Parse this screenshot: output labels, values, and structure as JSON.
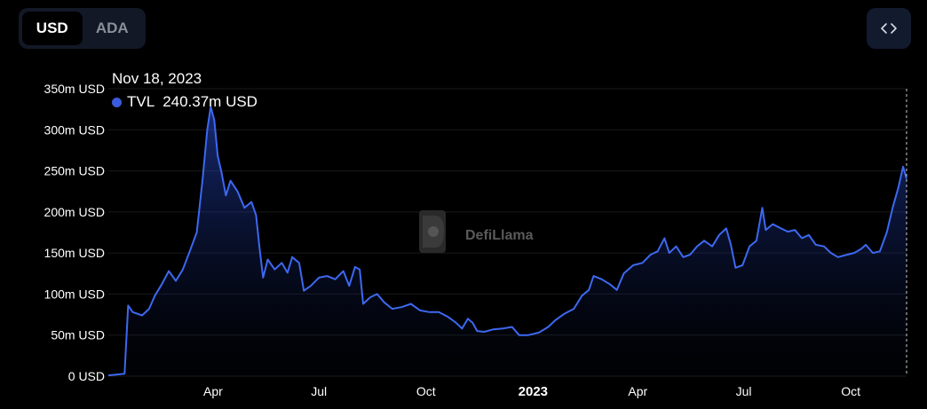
{
  "currency_toggle": {
    "options": [
      "USD",
      "ADA"
    ],
    "selected": "USD"
  },
  "embed_button": {
    "icon": "code-brackets-icon"
  },
  "tooltip": {
    "date": "Nov 18, 2023",
    "series_name": "TVL",
    "value": "240.37m USD",
    "dot_color": "#3b5bdb"
  },
  "watermark": {
    "text": "DefiLlama"
  },
  "colors": {
    "line": "#3d68f0",
    "background": "#000000",
    "grid": "#1a1a1a"
  },
  "chart_data": {
    "type": "area",
    "series": [
      {
        "name": "TVL",
        "unit": "m USD",
        "points": [
          [
            "2022-01-01",
            1
          ],
          [
            "2022-01-15",
            3
          ],
          [
            "2022-01-18",
            86
          ],
          [
            "2022-01-22",
            78
          ],
          [
            "2022-01-30",
            74
          ],
          [
            "2022-02-05",
            82
          ],
          [
            "2022-02-10",
            98
          ],
          [
            "2022-02-16",
            112
          ],
          [
            "2022-02-22",
            128
          ],
          [
            "2022-02-28",
            116
          ],
          [
            "2022-03-06",
            130
          ],
          [
            "2022-03-12",
            152
          ],
          [
            "2022-03-18",
            175
          ],
          [
            "2022-03-23",
            240
          ],
          [
            "2022-03-27",
            300
          ],
          [
            "2022-03-30",
            328
          ],
          [
            "2022-04-02",
            312
          ],
          [
            "2022-04-05",
            268
          ],
          [
            "2022-04-08",
            250
          ],
          [
            "2022-04-12",
            220
          ],
          [
            "2022-04-16",
            238
          ],
          [
            "2022-04-22",
            225
          ],
          [
            "2022-04-28",
            205
          ],
          [
            "2022-05-04",
            212
          ],
          [
            "2022-05-08",
            196
          ],
          [
            "2022-05-11",
            155
          ],
          [
            "2022-05-14",
            120
          ],
          [
            "2022-05-18",
            142
          ],
          [
            "2022-05-24",
            130
          ],
          [
            "2022-05-30",
            138
          ],
          [
            "2022-06-04",
            126
          ],
          [
            "2022-06-08",
            145
          ],
          [
            "2022-06-14",
            138
          ],
          [
            "2022-06-18",
            104
          ],
          [
            "2022-06-24",
            110
          ],
          [
            "2022-07-01",
            120
          ],
          [
            "2022-07-08",
            122
          ],
          [
            "2022-07-15",
            118
          ],
          [
            "2022-07-22",
            128
          ],
          [
            "2022-07-27",
            110
          ],
          [
            "2022-08-01",
            133
          ],
          [
            "2022-08-05",
            130
          ],
          [
            "2022-08-08",
            88
          ],
          [
            "2022-08-14",
            96
          ],
          [
            "2022-08-20",
            100
          ],
          [
            "2022-08-26",
            90
          ],
          [
            "2022-09-02",
            82
          ],
          [
            "2022-09-10",
            84
          ],
          [
            "2022-09-18",
            88
          ],
          [
            "2022-09-26",
            80
          ],
          [
            "2022-10-04",
            78
          ],
          [
            "2022-10-12",
            78
          ],
          [
            "2022-10-20",
            72
          ],
          [
            "2022-10-26",
            66
          ],
          [
            "2022-11-01",
            58
          ],
          [
            "2022-11-06",
            70
          ],
          [
            "2022-11-10",
            65
          ],
          [
            "2022-11-14",
            55
          ],
          [
            "2022-11-20",
            54
          ],
          [
            "2022-11-28",
            57
          ],
          [
            "2022-12-06",
            58
          ],
          [
            "2022-12-14",
            60
          ],
          [
            "2022-12-20",
            50
          ],
          [
            "2022-12-28",
            50
          ],
          [
            "2023-01-06",
            53
          ],
          [
            "2023-01-14",
            60
          ],
          [
            "2023-01-20",
            68
          ],
          [
            "2023-01-28",
            76
          ],
          [
            "2023-02-05",
            82
          ],
          [
            "2023-02-12",
            98
          ],
          [
            "2023-02-18",
            105
          ],
          [
            "2023-02-22",
            122
          ],
          [
            "2023-03-01",
            118
          ],
          [
            "2023-03-08",
            112
          ],
          [
            "2023-03-14",
            105
          ],
          [
            "2023-03-20",
            125
          ],
          [
            "2023-03-28",
            135
          ],
          [
            "2023-04-05",
            138
          ],
          [
            "2023-04-12",
            148
          ],
          [
            "2023-04-18",
            152
          ],
          [
            "2023-04-24",
            168
          ],
          [
            "2023-04-28",
            150
          ],
          [
            "2023-05-04",
            158
          ],
          [
            "2023-05-10",
            145
          ],
          [
            "2023-05-16",
            148
          ],
          [
            "2023-05-22",
            158
          ],
          [
            "2023-05-28",
            165
          ],
          [
            "2023-06-04",
            158
          ],
          [
            "2023-06-10",
            172
          ],
          [
            "2023-06-16",
            180
          ],
          [
            "2023-06-20",
            160
          ],
          [
            "2023-06-24",
            132
          ],
          [
            "2023-06-30",
            135
          ],
          [
            "2023-07-06",
            158
          ],
          [
            "2023-07-12",
            165
          ],
          [
            "2023-07-17",
            205
          ],
          [
            "2023-07-20",
            178
          ],
          [
            "2023-07-26",
            185
          ],
          [
            "2023-08-02",
            180
          ],
          [
            "2023-08-08",
            176
          ],
          [
            "2023-08-14",
            178
          ],
          [
            "2023-08-20",
            168
          ],
          [
            "2023-08-26",
            172
          ],
          [
            "2023-09-01",
            160
          ],
          [
            "2023-09-08",
            158
          ],
          [
            "2023-09-14",
            150
          ],
          [
            "2023-09-20",
            145
          ],
          [
            "2023-09-28",
            148
          ],
          [
            "2023-10-04",
            150
          ],
          [
            "2023-10-10",
            155
          ],
          [
            "2023-10-14",
            160
          ],
          [
            "2023-10-20",
            150
          ],
          [
            "2023-10-26",
            152
          ],
          [
            "2023-11-01",
            175
          ],
          [
            "2023-11-06",
            205
          ],
          [
            "2023-11-11",
            230
          ],
          [
            "2023-11-15",
            255
          ],
          [
            "2023-11-18",
            240.37
          ]
        ]
      }
    ],
    "ylim": [
      0,
      350
    ],
    "y_ticks": [
      {
        "value": 0,
        "label": "0 USD"
      },
      {
        "value": 50,
        "label": "50m USD"
      },
      {
        "value": 100,
        "label": "100m USD"
      },
      {
        "value": 150,
        "label": "150m USD"
      },
      {
        "value": 200,
        "label": "200m USD"
      },
      {
        "value": 250,
        "label": "250m USD"
      },
      {
        "value": 300,
        "label": "300m USD"
      },
      {
        "value": 350,
        "label": "350m USD"
      }
    ],
    "x_range": [
      "2022-01-01",
      "2023-11-18"
    ],
    "x_ticks": [
      {
        "date": "2022-04-01",
        "label": "Apr",
        "bold": false
      },
      {
        "date": "2022-07-01",
        "label": "Jul",
        "bold": false
      },
      {
        "date": "2022-10-01",
        "label": "Oct",
        "bold": false
      },
      {
        "date": "2023-01-01",
        "label": "2023",
        "bold": true
      },
      {
        "date": "2023-04-01",
        "label": "Apr",
        "bold": false
      },
      {
        "date": "2023-07-01",
        "label": "Jul",
        "bold": false
      },
      {
        "date": "2023-10-01",
        "label": "Oct",
        "bold": false
      }
    ],
    "grid": true,
    "hover_date": "2023-11-18"
  }
}
